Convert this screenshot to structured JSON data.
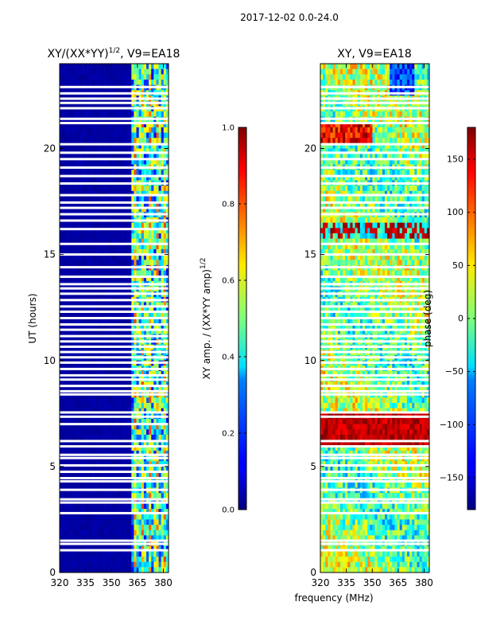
{
  "suptitle": "2017-12-02 0.0-24.0",
  "shared_xlabel": "frequency (MHz)",
  "chart_data": [
    {
      "type": "heatmap",
      "title_main": "XY/(XX*YY)",
      "title_exp": "1/2",
      "title_rest": ", V9=EA18",
      "xlabel": "",
      "ylabel": "UT (hours)",
      "xlim": [
        320,
        383
      ],
      "ylim": [
        0,
        24
      ],
      "xticks": [
        320,
        335,
        350,
        365,
        380
      ],
      "yticks": [
        0,
        5,
        10,
        15,
        20
      ],
      "low_value_boundary_mhz": 361,
      "colorbar": {
        "label_main": "XY amp. / (XX*YY amp)",
        "label_exp": "1/2",
        "range": [
          0.0,
          1.0
        ],
        "ticks": [
          "0.0",
          "0.2",
          "0.4",
          "0.6",
          "0.8",
          "1.0"
        ],
        "tick_values": [
          0.0,
          0.2,
          0.4,
          0.6,
          0.8,
          1.0
        ],
        "colormap": "jet"
      },
      "gap_hours": [
        1.05,
        1.35,
        1.5,
        2.8,
        3.3,
        3.45,
        3.9,
        4.3,
        4.45,
        4.75,
        5.05,
        5.4,
        5.55,
        5.95,
        6.2,
        7.0,
        7.35,
        7.55,
        8.4,
        8.55,
        8.8,
        9.1,
        9.3,
        9.6,
        9.9,
        10.15,
        10.4,
        10.65,
        10.9,
        11.15,
        11.45,
        11.7,
        12.0,
        12.3,
        12.55,
        12.85,
        13.15,
        13.4,
        13.6,
        13.95,
        14.4,
        15.0,
        15.5,
        16.2,
        16.6,
        16.9,
        17.2,
        17.45,
        17.8,
        18.35,
        18.7,
        19.1,
        19.5,
        19.8,
        20.2,
        21.2,
        21.4,
        21.9,
        22.15,
        22.35,
        22.6,
        22.9
      ]
    },
    {
      "type": "heatmap",
      "title_main": "XY, V9=EA18",
      "xlabel": "",
      "ylabel": "",
      "xlim": [
        320,
        383
      ],
      "ylim": [
        0,
        24
      ],
      "xticks": [
        320,
        335,
        350,
        365,
        380
      ],
      "yticks": [
        0,
        5,
        10,
        15,
        20
      ],
      "colorbar": {
        "label_main": "phase (deg)",
        "range": [
          -180,
          180
        ],
        "ticks": [
          "−150",
          "−100",
          "−50",
          "0",
          "50",
          "100",
          "150"
        ],
        "tick_values": [
          -150,
          -100,
          -50,
          0,
          50,
          100,
          150
        ],
        "colormap": "jet"
      },
      "gap_hours": [
        1.05,
        1.35,
        1.5,
        2.8,
        3.3,
        3.45,
        3.9,
        4.3,
        4.45,
        4.75,
        5.05,
        5.4,
        5.55,
        5.95,
        6.2,
        7.35,
        7.55,
        8.4,
        8.55,
        8.8,
        9.1,
        9.3,
        9.6,
        9.9,
        10.15,
        10.4,
        10.65,
        10.9,
        11.15,
        11.45,
        11.7,
        12.0,
        12.3,
        12.55,
        12.85,
        13.15,
        13.4,
        13.6,
        13.95,
        14.4,
        15.0,
        15.5,
        16.9,
        17.2,
        17.45,
        17.8,
        18.35,
        18.7,
        19.1,
        19.5,
        19.8,
        20.2,
        21.2,
        21.4,
        21.9,
        22.15,
        22.35,
        22.6,
        22.9
      ]
    }
  ]
}
